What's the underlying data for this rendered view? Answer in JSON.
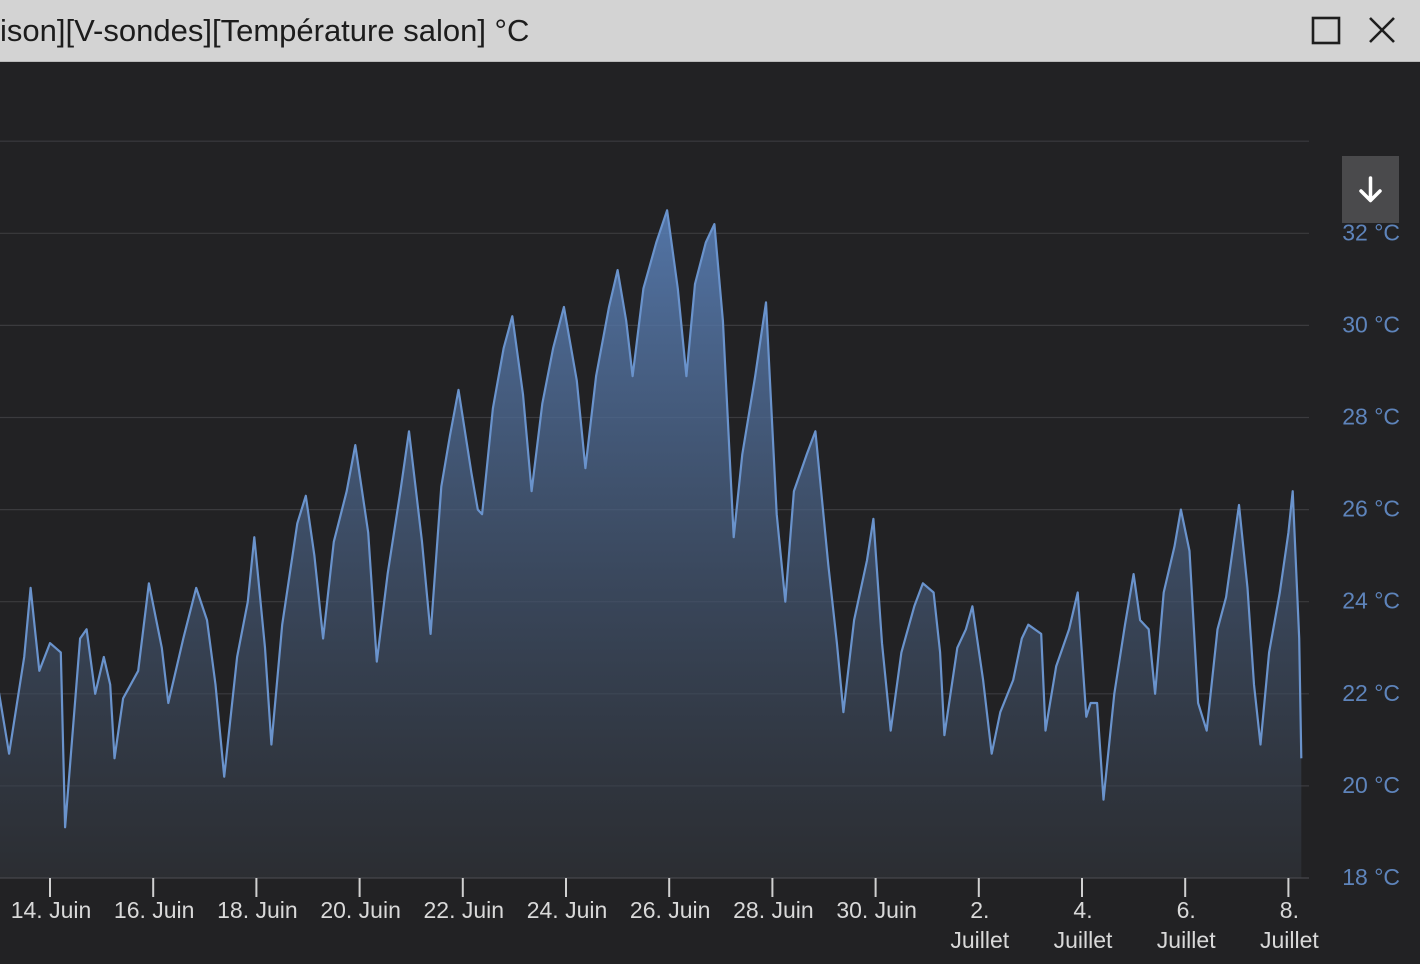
{
  "window": {
    "title": "ison][V-sondes][Température salon] °C",
    "maximize_icon": "maximize-icon",
    "close_icon": "close-icon"
  },
  "toolbar": {
    "download_icon": "arrow-down-icon"
  },
  "colors": {
    "background": "#222224",
    "titlebar": "#d3d3d3",
    "line": "#6a93cc",
    "axis_label": "#5e84bb",
    "x_label": "#d9d9d9",
    "grid": "#3b3b3e"
  },
  "chart_data": {
    "type": "area",
    "title": "",
    "xlabel": "",
    "ylabel": "",
    "ylim": [
      18,
      33.7
    ],
    "xlim": [
      "2022-06-13",
      "2022-07-08T06:00"
    ],
    "grid": true,
    "legend": "none",
    "y_ticks": [
      "18 °C",
      "20 °C",
      "22 °C",
      "24 °C",
      "26 °C",
      "28 °C",
      "30 °C",
      "32 °C"
    ],
    "y_tick_values": [
      18,
      20,
      22,
      24,
      26,
      28,
      30,
      32
    ],
    "x_ticks": [
      {
        "date": "2022-06-14",
        "label": [
          "14. Juin"
        ]
      },
      {
        "date": "2022-06-16",
        "label": [
          "16. Juin"
        ]
      },
      {
        "date": "2022-06-18",
        "label": [
          "18. Juin"
        ]
      },
      {
        "date": "2022-06-20",
        "label": [
          "20. Juin"
        ]
      },
      {
        "date": "2022-06-22",
        "label": [
          "22. Juin"
        ]
      },
      {
        "date": "2022-06-24",
        "label": [
          "24. Juin"
        ]
      },
      {
        "date": "2022-06-26",
        "label": [
          "26. Juin"
        ]
      },
      {
        "date": "2022-06-28",
        "label": [
          "28. Juin"
        ]
      },
      {
        "date": "2022-06-30",
        "label": [
          "30. Juin"
        ]
      },
      {
        "date": "2022-07-02",
        "label": [
          "2.",
          "Juillet"
        ]
      },
      {
        "date": "2022-07-04",
        "label": [
          "4.",
          "Juillet"
        ]
      },
      {
        "date": "2022-07-06",
        "label": [
          "6.",
          "Juillet"
        ]
      },
      {
        "date": "2022-07-08",
        "label": [
          "8.",
          "Juillet"
        ]
      }
    ],
    "series": [
      {
        "points": [
          [
            "2022-06-13T00:00",
            22.1
          ],
          [
            "2022-06-13T05:00",
            20.7
          ],
          [
            "2022-06-13T12:00",
            22.8
          ],
          [
            "2022-06-13T15:00",
            24.3
          ],
          [
            "2022-06-13T19:00",
            22.5
          ],
          [
            "2022-06-14T00:00",
            23.1
          ],
          [
            "2022-06-14T05:00",
            22.9
          ],
          [
            "2022-06-14T07:00",
            19.1
          ],
          [
            "2022-06-14T14:00",
            23.2
          ],
          [
            "2022-06-14T17:00",
            23.4
          ],
          [
            "2022-06-14T21:00",
            22.0
          ],
          [
            "2022-06-15T01:00",
            22.8
          ],
          [
            "2022-06-15T04:00",
            22.2
          ],
          [
            "2022-06-15T06:00",
            20.6
          ],
          [
            "2022-06-15T10:00",
            21.9
          ],
          [
            "2022-06-15T17:00",
            22.5
          ],
          [
            "2022-06-15T22:00",
            24.4
          ],
          [
            "2022-06-16T04:00",
            23.0
          ],
          [
            "2022-06-16T07:00",
            21.8
          ],
          [
            "2022-06-16T14:00",
            23.2
          ],
          [
            "2022-06-16T20:00",
            24.3
          ],
          [
            "2022-06-17T01:00",
            23.6
          ],
          [
            "2022-06-17T05:00",
            22.2
          ],
          [
            "2022-06-17T09:00",
            20.2
          ],
          [
            "2022-06-17T15:00",
            22.8
          ],
          [
            "2022-06-17T20:00",
            24.0
          ],
          [
            "2022-06-17T23:00",
            25.4
          ],
          [
            "2022-06-18T04:00",
            23.0
          ],
          [
            "2022-06-18T07:00",
            20.9
          ],
          [
            "2022-06-18T12:00",
            23.5
          ],
          [
            "2022-06-18T19:00",
            25.7
          ],
          [
            "2022-06-18T23:00",
            26.3
          ],
          [
            "2022-06-19T03:00",
            25.0
          ],
          [
            "2022-06-19T07:00",
            23.2
          ],
          [
            "2022-06-19T12:00",
            25.3
          ],
          [
            "2022-06-19T18:00",
            26.4
          ],
          [
            "2022-06-19T22:00",
            27.4
          ],
          [
            "2022-06-20T04:00",
            25.5
          ],
          [
            "2022-06-20T08:00",
            22.7
          ],
          [
            "2022-06-20T13:00",
            24.6
          ],
          [
            "2022-06-20T19:00",
            26.4
          ],
          [
            "2022-06-20T23:00",
            27.7
          ],
          [
            "2022-06-21T05:00",
            25.3
          ],
          [
            "2022-06-21T09:00",
            23.3
          ],
          [
            "2022-06-21T14:00",
            26.5
          ],
          [
            "2022-06-21T18:00",
            27.6
          ],
          [
            "2022-06-21T22:00",
            28.6
          ],
          [
            "2022-06-22T04:00",
            26.8
          ],
          [
            "2022-06-22T07:00",
            26.0
          ],
          [
            "2022-06-22T09:00",
            25.9
          ],
          [
            "2022-06-22T14:00",
            28.2
          ],
          [
            "2022-06-22T19:00",
            29.5
          ],
          [
            "2022-06-22T23:00",
            30.2
          ],
          [
            "2022-06-23T04:00",
            28.5
          ],
          [
            "2022-06-23T08:00",
            26.4
          ],
          [
            "2022-06-23T13:00",
            28.3
          ],
          [
            "2022-06-23T18:00",
            29.5
          ],
          [
            "2022-06-23T23:00",
            30.4
          ],
          [
            "2022-06-24T05:00",
            28.8
          ],
          [
            "2022-06-24T09:00",
            26.9
          ],
          [
            "2022-06-24T14:00",
            28.9
          ],
          [
            "2022-06-24T20:00",
            30.4
          ],
          [
            "2022-06-25T00:00",
            31.2
          ],
          [
            "2022-06-25T04:00",
            30.1
          ],
          [
            "2022-06-25T07:00",
            28.9
          ],
          [
            "2022-06-25T12:00",
            30.8
          ],
          [
            "2022-06-25T18:00",
            31.8
          ],
          [
            "2022-06-25T23:00",
            32.5
          ],
          [
            "2022-06-26T04:00",
            30.8
          ],
          [
            "2022-06-26T08:00",
            28.9
          ],
          [
            "2022-06-26T12:00",
            30.9
          ],
          [
            "2022-06-26T17:00",
            31.8
          ],
          [
            "2022-06-26T21:00",
            32.2
          ],
          [
            "2022-06-27T01:00",
            30.1
          ],
          [
            "2022-06-27T06:00",
            25.4
          ],
          [
            "2022-06-27T10:00",
            27.2
          ],
          [
            "2022-06-27T16:00",
            28.9
          ],
          [
            "2022-06-27T21:00",
            30.5
          ],
          [
            "2022-06-28T02:00",
            25.9
          ],
          [
            "2022-06-28T06:00",
            24.0
          ],
          [
            "2022-06-28T10:00",
            26.4
          ],
          [
            "2022-06-28T16:00",
            27.2
          ],
          [
            "2022-06-28T20:00",
            27.7
          ],
          [
            "2022-06-29T02:00",
            24.8
          ],
          [
            "2022-06-29T06:00",
            23.1
          ],
          [
            "2022-06-29T09:00",
            21.6
          ],
          [
            "2022-06-29T14:00",
            23.6
          ],
          [
            "2022-06-29T20:00",
            24.9
          ],
          [
            "2022-06-29T23:00",
            25.8
          ],
          [
            "2022-06-30T03:00",
            23.1
          ],
          [
            "2022-06-30T07:00",
            21.2
          ],
          [
            "2022-06-30T12:00",
            22.9
          ],
          [
            "2022-06-30T18:00",
            23.9
          ],
          [
            "2022-06-30T22:00",
            24.4
          ],
          [
            "2022-07-01T03:00",
            24.2
          ],
          [
            "2022-07-01T06:00",
            22.9
          ],
          [
            "2022-07-01T08:00",
            21.1
          ],
          [
            "2022-07-01T14:00",
            23.0
          ],
          [
            "2022-07-01T18:00",
            23.4
          ],
          [
            "2022-07-01T21:00",
            23.9
          ],
          [
            "2022-07-02T02:00",
            22.3
          ],
          [
            "2022-07-02T06:00",
            20.7
          ],
          [
            "2022-07-02T10:00",
            21.6
          ],
          [
            "2022-07-02T16:00",
            22.3
          ],
          [
            "2022-07-02T20:00",
            23.2
          ],
          [
            "2022-07-02T23:00",
            23.5
          ],
          [
            "2022-07-03T05:00",
            23.3
          ],
          [
            "2022-07-03T07:00",
            21.2
          ],
          [
            "2022-07-03T12:00",
            22.6
          ],
          [
            "2022-07-03T18:00",
            23.4
          ],
          [
            "2022-07-03T22:00",
            24.2
          ],
          [
            "2022-07-04T02:00",
            21.5
          ],
          [
            "2022-07-04T04:00",
            21.8
          ],
          [
            "2022-07-04T07:00",
            21.8
          ],
          [
            "2022-07-04T10:00",
            19.7
          ],
          [
            "2022-07-04T15:00",
            22.0
          ],
          [
            "2022-07-04T20:00",
            23.5
          ],
          [
            "2022-07-05T00:00",
            24.6
          ],
          [
            "2022-07-05T03:00",
            23.6
          ],
          [
            "2022-07-05T07:00",
            23.4
          ],
          [
            "2022-07-05T10:00",
            22.0
          ],
          [
            "2022-07-05T14:00",
            24.2
          ],
          [
            "2022-07-05T19:00",
            25.2
          ],
          [
            "2022-07-05T22:00",
            26.0
          ],
          [
            "2022-07-06T02:00",
            25.1
          ],
          [
            "2022-07-06T06:00",
            21.8
          ],
          [
            "2022-07-06T10:00",
            21.2
          ],
          [
            "2022-07-06T15:00",
            23.4
          ],
          [
            "2022-07-06T19:00",
            24.1
          ],
          [
            "2022-07-06T22:00",
            25.1
          ],
          [
            "2022-07-07T01:00",
            26.1
          ],
          [
            "2022-07-07T05:00",
            24.3
          ],
          [
            "2022-07-07T08:00",
            22.2
          ],
          [
            "2022-07-07T11:00",
            20.9
          ],
          [
            "2022-07-07T15:00",
            22.9
          ],
          [
            "2022-07-07T20:00",
            24.2
          ],
          [
            "2022-07-08T00:00",
            25.5
          ],
          [
            "2022-07-08T02:00",
            26.4
          ],
          [
            "2022-07-08T05:00",
            23.2
          ],
          [
            "2022-07-08T06:00",
            20.6
          ]
        ]
      }
    ]
  }
}
